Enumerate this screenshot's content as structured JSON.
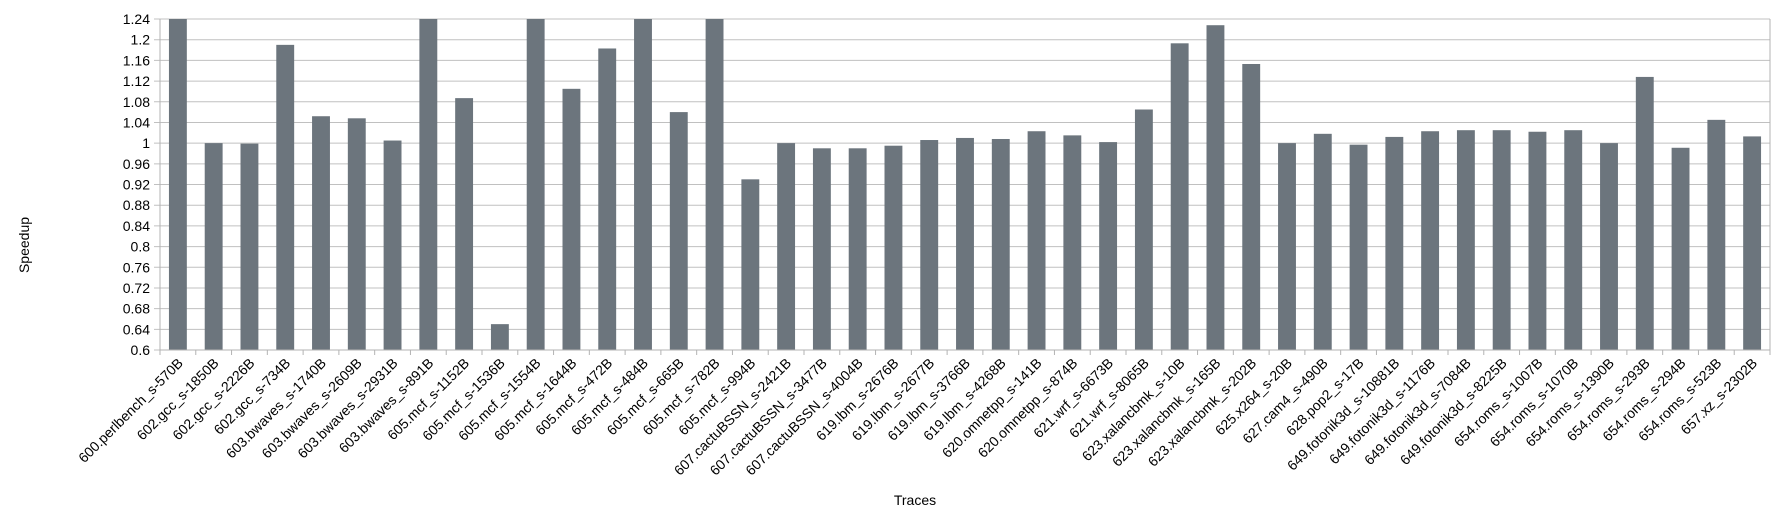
{
  "chart_data": {
    "type": "bar",
    "xlabel": "Traces",
    "ylabel": "Speedup",
    "ylim": [
      0.6,
      1.24
    ],
    "yticks": [
      "1.24",
      "1.2",
      "1.16",
      "1.12",
      "1.08",
      "1.04",
      "1",
      "0.96",
      "0.92",
      "0.88",
      "0.84",
      "0.8",
      "0.76",
      "0.72",
      "0.68",
      "0.64",
      "0.6"
    ],
    "grid": true,
    "bar_color": "#6c757d",
    "grid_color": "#c0c0c0",
    "categories": [
      "600.perlbench_s-570B",
      "602.gcc_s-1850B",
      "602.gcc_s-2226B",
      "602.gcc_s-734B",
      "603.bwaves_s-1740B",
      "603.bwaves_s-2609B",
      "603.bwaves_s-2931B",
      "603.bwaves_s-891B",
      "605.mcf_s-1152B",
      "605.mcf_s-1536B",
      "605.mcf_s-1554B",
      "605.mcf_s-1644B",
      "605.mcf_s-472B",
      "605.mcf_s-484B",
      "605.mcf_s-665B",
      "605.mcf_s-782B",
      "605.mcf_s-994B",
      "607.cactuBSSN_s-2421B",
      "607.cactuBSSN_s-3477B",
      "607.cactuBSSN_s-4004B",
      "619.lbm_s-2676B",
      "619.lbm_s-2677B",
      "619.lbm_s-3766B",
      "619.lbm_s-4268B",
      "620.omnetpp_s-141B",
      "620.omnetpp_s-874B",
      "621.wrf_s-6673B",
      "621.wrf_s-8065B",
      "623.xalancbmk_s-10B",
      "623.xalancbmk_s-165B",
      "623.xalancbmk_s-202B",
      "625.x264_s-20B",
      "627.cam4_s-490B",
      "628.pop2_s-17B",
      "649.fotonik3d_s-10881B",
      "649.fotonik3d_s-1176B",
      "649.fotonik3d_s-7084B",
      "649.fotonik3d_s-8225B",
      "654.roms_s-1007B",
      "654.roms_s-1070B",
      "654.roms_s-1390B",
      "654.roms_s-293B",
      "654.roms_s-294B",
      "654.roms_s-523B",
      "657.xz_s-2302B"
    ],
    "values": [
      1.24,
      1.0,
      0.999,
      1.19,
      1.052,
      1.048,
      1.005,
      1.24,
      1.087,
      0.65,
      1.24,
      1.105,
      1.183,
      1.24,
      1.06,
      1.24,
      0.93,
      1.0,
      0.99,
      0.99,
      0.995,
      1.006,
      1.01,
      1.008,
      1.023,
      1.015,
      1.002,
      1.065,
      1.193,
      1.228,
      1.153,
      1.0,
      1.018,
      0.997,
      1.012,
      1.023,
      1.025,
      1.025,
      1.022,
      1.025,
      1.0,
      1.128,
      0.991,
      1.045,
      1.013
    ]
  }
}
